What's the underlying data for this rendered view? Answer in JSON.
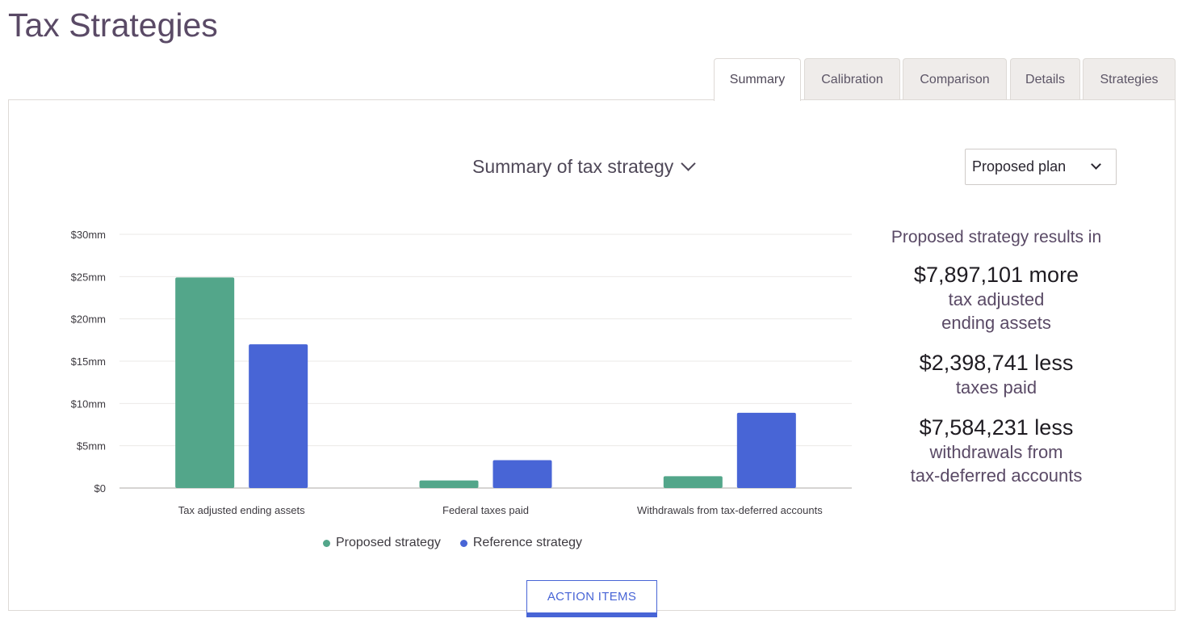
{
  "page": {
    "title": "Tax Strategies"
  },
  "tabs": [
    {
      "label": "Summary",
      "active": true
    },
    {
      "label": "Calibration",
      "active": false
    },
    {
      "label": "Comparison",
      "active": false
    },
    {
      "label": "Details",
      "active": false
    },
    {
      "label": "Strategies",
      "active": false
    }
  ],
  "chart_header": {
    "title": "Summary of tax strategy"
  },
  "plan_select": {
    "value": "Proposed plan"
  },
  "summary": {
    "lead": "Proposed strategy results in",
    "items": [
      {
        "amount": "$7,897,101 more",
        "description_line1": "tax adjusted",
        "description_line2": "ending assets"
      },
      {
        "amount": "$2,398,741 less",
        "description_line1": "taxes paid",
        "description_line2": ""
      },
      {
        "amount": "$7,584,231 less",
        "description_line1": "withdrawals from",
        "description_line2": "tax-deferred accounts"
      }
    ]
  },
  "action_button": {
    "label": "ACTION ITEMS"
  },
  "colors": {
    "proposed": "#53a68a",
    "reference": "#4865d6",
    "title": "#5a4a66"
  },
  "chart_data": {
    "type": "bar",
    "categories": [
      "Tax adjusted ending assets",
      "Federal taxes paid",
      "Withdrawals from tax-deferred accounts"
    ],
    "series": [
      {
        "name": "Proposed strategy",
        "values": [
          24.9,
          0.9,
          1.4
        ]
      },
      {
        "name": "Reference strategy",
        "values": [
          17.0,
          3.3,
          8.9
        ]
      }
    ],
    "ylim": [
      0,
      30
    ],
    "yticks": [
      0,
      5,
      10,
      15,
      20,
      25,
      30
    ],
    "ytick_labels": [
      "$0",
      "$5mm",
      "$10mm",
      "$15mm",
      "$20mm",
      "$25mm",
      "$30mm"
    ],
    "grid": true,
    "legend": "bottom"
  }
}
